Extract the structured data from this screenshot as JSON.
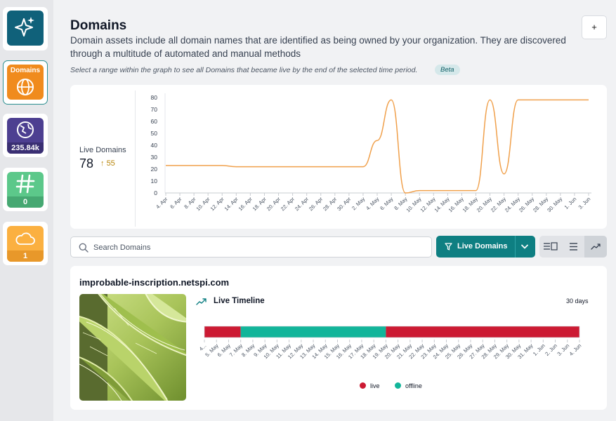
{
  "sidebar": {
    "items": [
      {
        "name": "ai-assistant",
        "icon": "sparkles-icon",
        "color": "#10617a"
      },
      {
        "name": "domains",
        "label": "Domains",
        "icon": "globe-icon",
        "color": "#f08b1d"
      },
      {
        "name": "ip-addresses",
        "count": "235.84k",
        "icon": "network-globe-icon",
        "color": "#4d3f91"
      },
      {
        "name": "hashes",
        "count": "0",
        "icon": "hash-icon",
        "color": "#5cc88a"
      },
      {
        "name": "cloud",
        "count": "1",
        "icon": "cloud-icon",
        "color": "#fbb040"
      }
    ]
  },
  "header": {
    "title": "Domains",
    "description": "Domain assets include all domain names that are identified as being owned by your organization. They are discovered through a multitude of automated and manual methods",
    "hint": "Select a range within the graph to see all Domains that became live by the end of the selected time period.",
    "beta": "Beta",
    "add_label": "+"
  },
  "stats": {
    "label": "Live Domains",
    "value": "78",
    "change": "55"
  },
  "chart_data": {
    "type": "line",
    "x": [
      "4. Apr",
      "6. Apr",
      "8. Apr",
      "10. Apr",
      "12. Apr",
      "14. Apr",
      "16. Apr",
      "18. Apr",
      "20. Apr",
      "22. Apr",
      "24. Apr",
      "26. Apr",
      "28. Apr",
      "30. Apr",
      "2. May",
      "4. May",
      "6. May",
      "8. May",
      "10. May",
      "12. May",
      "14. May",
      "16. May",
      "18. May",
      "20. May",
      "22. May",
      "24. May",
      "26. May",
      "28. May",
      "30. May",
      "1. Jun",
      "3. Jun"
    ],
    "values": [
      23,
      23,
      23,
      23,
      23,
      22,
      22,
      22,
      22,
      22,
      22,
      22,
      22,
      22,
      22,
      44,
      78,
      0,
      2,
      2,
      2,
      2,
      2,
      78,
      16,
      78,
      78,
      78,
      78,
      78,
      78
    ],
    "yticks": [
      0,
      10,
      20,
      30,
      40,
      50,
      60,
      70,
      80
    ],
    "ylim": [
      0,
      80
    ],
    "color": "#f0a04b"
  },
  "search": {
    "placeholder": "Search Domains"
  },
  "filter": {
    "label": "Live Domains"
  },
  "domain": {
    "name": "improbable-inscription.netspi.com",
    "timeline_title": "Live Timeline",
    "timeline_range": "30 days",
    "timeline": {
      "labels": [
        "4...",
        "5. May",
        "6. May",
        "7. May",
        "8. May",
        "9. May",
        "10. May",
        "11. May",
        "12. May",
        "13. May",
        "14. May",
        "15. May",
        "16. May",
        "17. May",
        "18. May",
        "19. May",
        "20. May",
        "21. May",
        "22. May",
        "23. May",
        "24. May",
        "25. May",
        "26. May",
        "27. May",
        "28. May",
        "29. May",
        "30. May",
        "31. May",
        "1. Jun",
        "2. Jun",
        "3. Jun",
        "4. Jun"
      ],
      "segments": [
        {
          "status": "live",
          "start": 0,
          "end": 3
        },
        {
          "status": "offline",
          "start": 3,
          "end": 15
        },
        {
          "status": "live",
          "start": 15,
          "end": 31
        }
      ]
    },
    "legend": [
      {
        "label": "live",
        "color": "#cc1a33"
      },
      {
        "label": "offline",
        "color": "#12b59a"
      }
    ]
  }
}
